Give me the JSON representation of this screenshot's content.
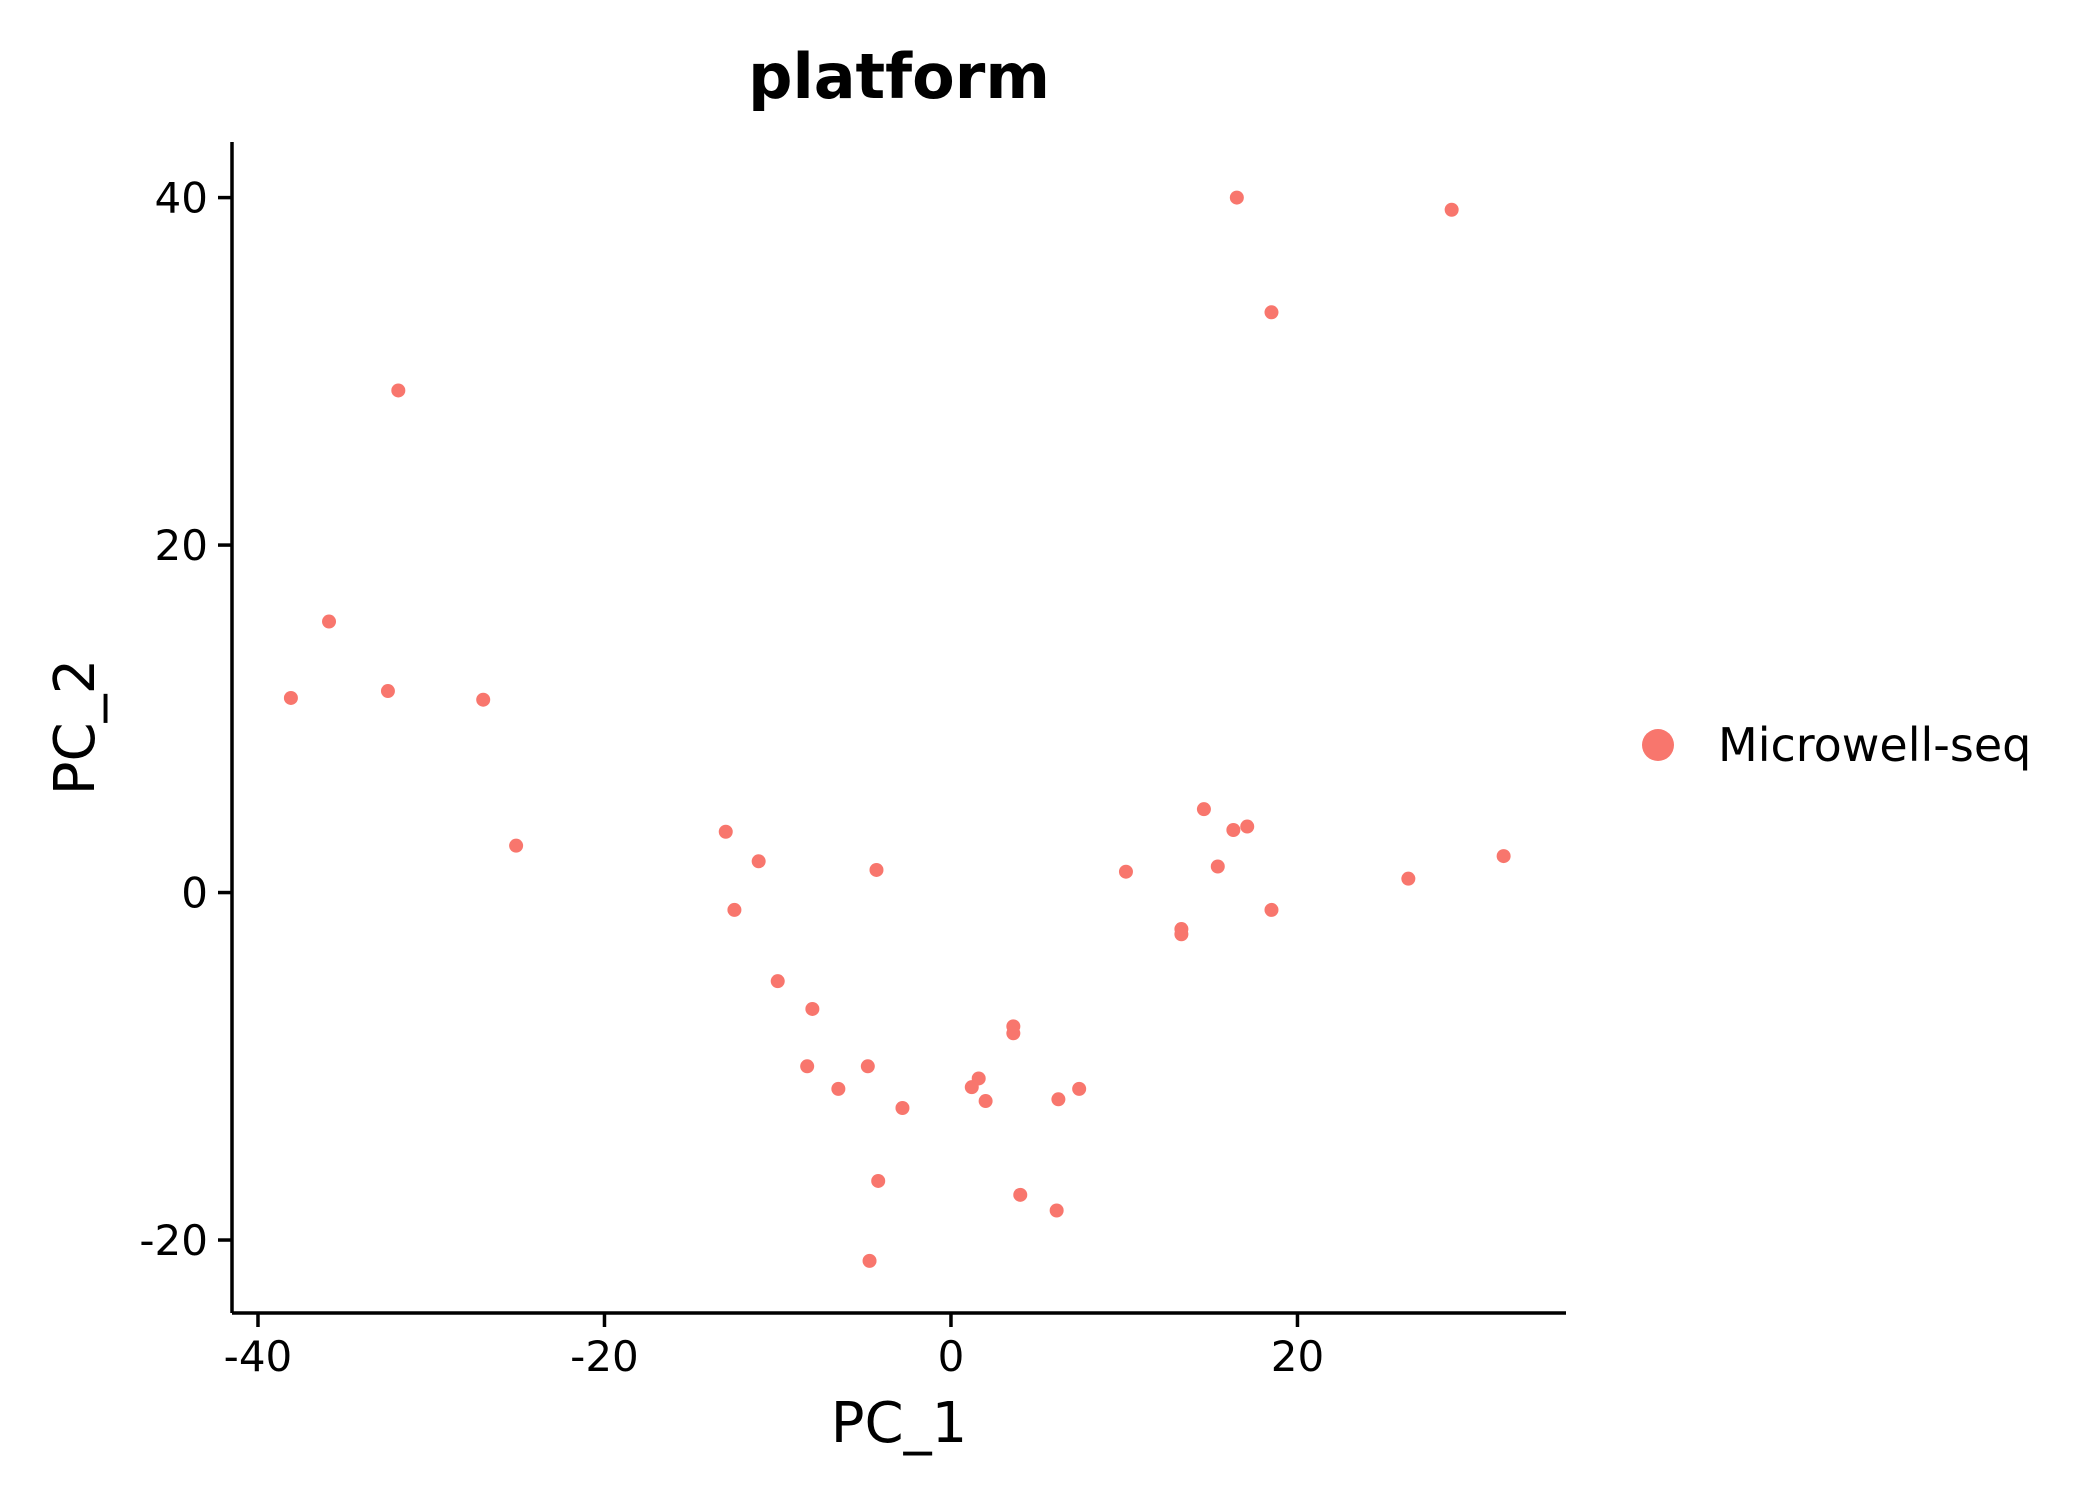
{
  "chart_data": {
    "type": "scatter",
    "title": "platform",
    "xlabel": "PC_1",
    "ylabel": "PC_2",
    "xlim": [
      -41.5,
      35.5
    ],
    "ylim": [
      -24.2,
      43.2
    ],
    "xticks": [
      -40,
      -20,
      0,
      20
    ],
    "yticks": [
      -20,
      0,
      20,
      40
    ],
    "grid": false,
    "legend_position": "right",
    "series": [
      {
        "name": "Microwell-seq",
        "color": "#F8766D",
        "points": [
          {
            "x": 16.5,
            "y": 40.0
          },
          {
            "x": 28.9,
            "y": 39.3
          },
          {
            "x": 18.5,
            "y": 33.4
          },
          {
            "x": -31.9,
            "y": 28.9
          },
          {
            "x": -35.9,
            "y": 15.6
          },
          {
            "x": -38.1,
            "y": 11.2
          },
          {
            "x": -32.5,
            "y": 11.6
          },
          {
            "x": -27.0,
            "y": 11.1
          },
          {
            "x": -25.1,
            "y": 2.7
          },
          {
            "x": -13.0,
            "y": 3.5
          },
          {
            "x": -11.1,
            "y": 1.8
          },
          {
            "x": -4.3,
            "y": 1.3
          },
          {
            "x": -12.5,
            "y": -1.0
          },
          {
            "x": -10.0,
            "y": -5.1
          },
          {
            "x": -8.0,
            "y": -6.7
          },
          {
            "x": -8.3,
            "y": -10.0
          },
          {
            "x": -6.5,
            "y": -11.3
          },
          {
            "x": -4.8,
            "y": -10.0
          },
          {
            "x": -2.8,
            "y": -12.4
          },
          {
            "x": -4.2,
            "y": -16.6
          },
          {
            "x": -4.7,
            "y": -21.2
          },
          {
            "x": 1.2,
            "y": -11.2
          },
          {
            "x": 1.6,
            "y": -10.7
          },
          {
            "x": 2.0,
            "y": -12.0
          },
          {
            "x": 3.6,
            "y": -7.7
          },
          {
            "x": 3.6,
            "y": -8.1
          },
          {
            "x": 4.0,
            "y": -17.4
          },
          {
            "x": 6.2,
            "y": -11.9
          },
          {
            "x": 7.4,
            "y": -11.3
          },
          {
            "x": 6.1,
            "y": -18.3
          },
          {
            "x": 10.1,
            "y": 1.2
          },
          {
            "x": 13.3,
            "y": -2.1
          },
          {
            "x": 13.3,
            "y": -2.4
          },
          {
            "x": 14.6,
            "y": 4.8
          },
          {
            "x": 16.3,
            "y": 3.6
          },
          {
            "x": 17.1,
            "y": 3.8
          },
          {
            "x": 15.4,
            "y": 1.5
          },
          {
            "x": 18.5,
            "y": -1.0
          },
          {
            "x": 26.4,
            "y": 0.8
          },
          {
            "x": 31.9,
            "y": 2.1
          }
        ]
      }
    ]
  }
}
